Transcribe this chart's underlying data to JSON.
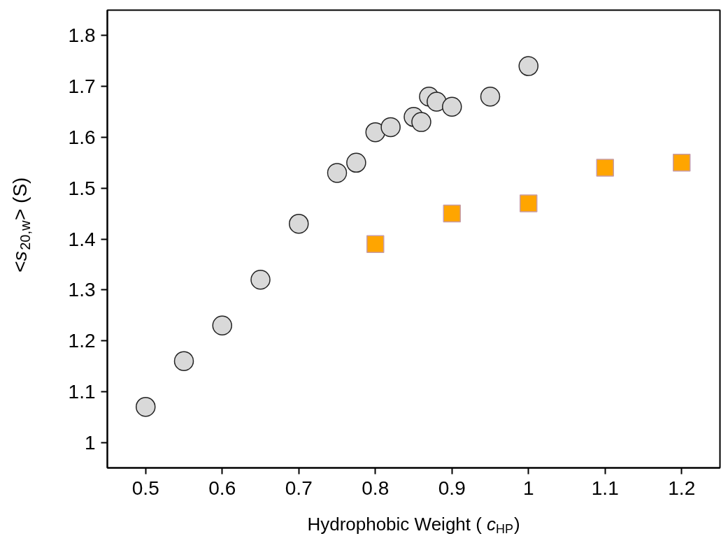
{
  "chart_data": {
    "type": "scatter",
    "xlabel": "Hydrophobic Weight (c$_{HP}$)",
    "ylabel": "<s$_{20,w}$> (S)",
    "xlim": [
      0.45,
      1.25
    ],
    "xticks": [
      0.5,
      0.6,
      0.7,
      0.8,
      0.9,
      1,
      1.1,
      1.2
    ],
    "ylim": [
      0.95,
      1.85
    ],
    "yticks": [
      1,
      1.1,
      1.2,
      1.3,
      1.4,
      1.5,
      1.6,
      1.7,
      1.8
    ],
    "grid": false,
    "series": [
      {
        "marker": "circle",
        "color": "#d9d9d9",
        "x": [
          0.5,
          0.55,
          0.6,
          0.65,
          0.7,
          0.75,
          0.775,
          0.8,
          0.82,
          0.85,
          0.86,
          0.87,
          0.88,
          0.9,
          0.95,
          1.0
        ],
        "values": [
          1.07,
          1.16,
          1.23,
          1.32,
          1.43,
          1.53,
          1.55,
          1.61,
          1.62,
          1.64,
          1.63,
          1.68,
          1.67,
          1.66,
          1.68,
          1.74
        ]
      },
      {
        "marker": "square",
        "color": "#ffa500",
        "x": [
          0.8,
          0.9,
          1.0,
          1.1,
          1.2
        ],
        "values": [
          1.39,
          1.45,
          1.47,
          1.54,
          1.55
        ]
      }
    ]
  }
}
